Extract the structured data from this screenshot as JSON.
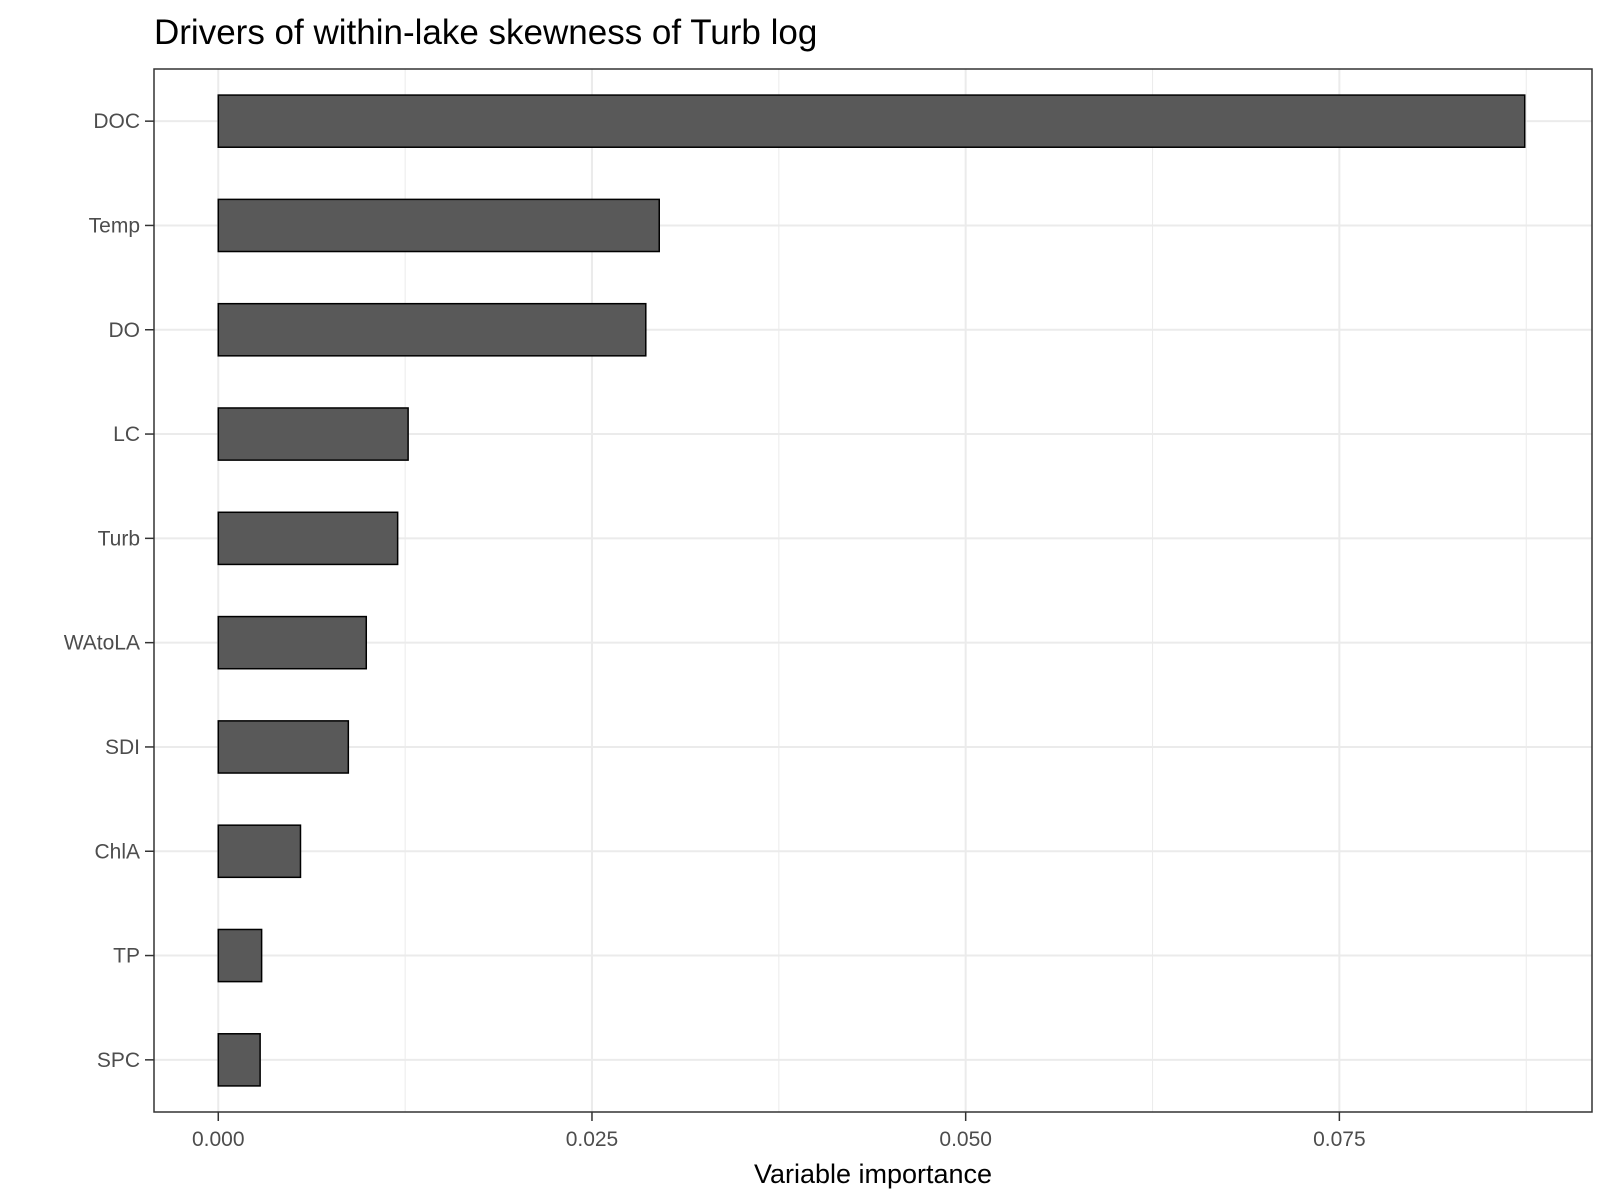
{
  "chart_data": {
    "type": "bar",
    "orientation": "horizontal",
    "title": "Drivers of within-lake skewness of Turb log",
    "xlabel": "Variable importance",
    "ylabel": "",
    "categories": [
      "DOC",
      "Temp",
      "DO",
      "LC",
      "Turb",
      "WAtoLA",
      "SDI",
      "ChlA",
      "TP",
      "SPC"
    ],
    "values": [
      0.0874,
      0.0295,
      0.0286,
      0.0127,
      0.012,
      0.0099,
      0.0087,
      0.0055,
      0.0029,
      0.0028
    ],
    "xlim": [
      -0.0043,
      0.0919
    ],
    "xticks": [
      0.0,
      0.025,
      0.05,
      0.075
    ],
    "xtick_labels": [
      "0.000",
      "0.025",
      "0.050",
      "0.075"
    ],
    "grid": true,
    "legend": "none",
    "colors": {
      "bar_fill": "#595959",
      "bar_stroke": "#000000",
      "grid": "#ebebeb",
      "panel_border": "#333333",
      "tick_text": "#4d4d4d"
    }
  }
}
